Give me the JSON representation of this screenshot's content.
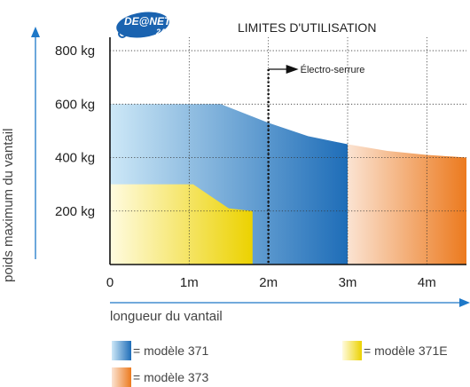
{
  "brand": {
    "name": "DE@NET",
    "subtext": "24"
  },
  "chart_data": {
    "type": "area",
    "title": "LIMITES D'UTILISATION",
    "xlabel": "longueur du vantail",
    "ylabel": "poids maximum du vantail",
    "x_ticks": [
      "0",
      "1m",
      "2m",
      "3m",
      "4m"
    ],
    "y_ticks": [
      "200 kg",
      "400 kg",
      "600 kg",
      "800 kg"
    ],
    "xlim": [
      0,
      4.5
    ],
    "ylim": [
      0,
      850
    ],
    "grid": true,
    "annotation": {
      "text": "Électro-serrure",
      "x": 2
    },
    "series": [
      {
        "name": "modèle 371",
        "color_from": "#cde8f7",
        "color_to": "#1e6db8",
        "points": [
          [
            0,
            600
          ],
          [
            1.4,
            600
          ],
          [
            2,
            530
          ],
          [
            2.5,
            480
          ],
          [
            3,
            450
          ],
          [
            3,
            0
          ],
          [
            0,
            0
          ]
        ]
      },
      {
        "name": "modèle 373",
        "color_from": "#fbe3d2",
        "color_to": "#ec7a1e",
        "points": [
          [
            3,
            450
          ],
          [
            3.5,
            425
          ],
          [
            4,
            410
          ],
          [
            4.5,
            400
          ],
          [
            4.5,
            0
          ],
          [
            3,
            0
          ]
        ]
      },
      {
        "name": "modèle 371E",
        "color_from": "#fffbe0",
        "color_to": "#ecd200",
        "points": [
          [
            0,
            300
          ],
          [
            1.05,
            300
          ],
          [
            1.3,
            250
          ],
          [
            1.5,
            210
          ],
          [
            1.8,
            200
          ],
          [
            1.8,
            0
          ],
          [
            0,
            0
          ]
        ]
      }
    ],
    "legend": [
      {
        "label": "= modèle 371",
        "color_from": "#cde8f7",
        "color_to": "#1e6db8"
      },
      {
        "label": "= modèle 371E",
        "color_from": "#fffbe0",
        "color_to": "#ecd200"
      },
      {
        "label": "= modèle 373",
        "color_from": "#fbe3d2",
        "color_to": "#ec7a1e"
      }
    ],
    "axis_arrow_color": "#1e78c8"
  }
}
